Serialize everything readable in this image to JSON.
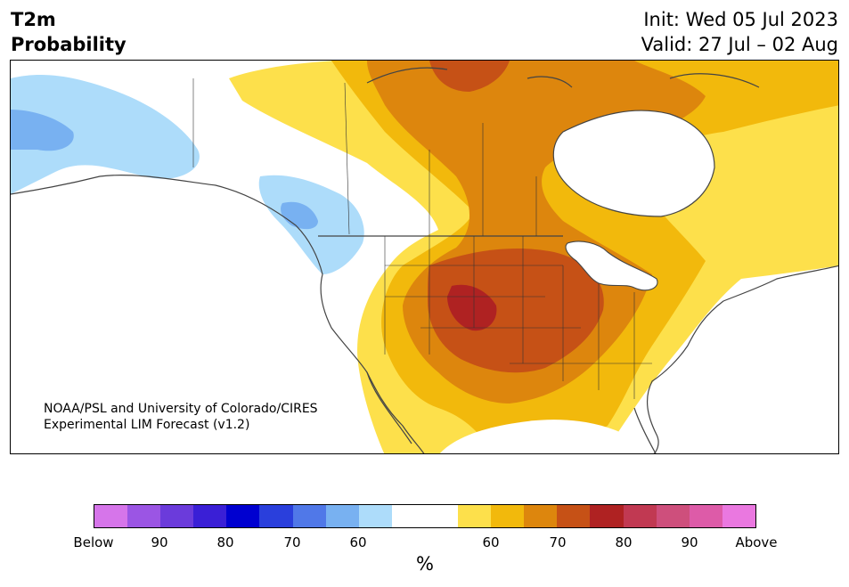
{
  "title": {
    "left_line1": "T2m",
    "left_line2": "Probability",
    "right_line1": "Init: Wed 05 Jul 2023",
    "right_line2": "Valid: 27 Jul – 02 Aug"
  },
  "credit": {
    "line1": "NOAA/PSL and University of Colorado/CIRES",
    "line2": "Experimental LIM Forecast (v1.2)"
  },
  "colorbar": {
    "colors": [
      "#d675ea",
      "#9b55e4",
      "#6b3bdb",
      "#3a1fd6",
      "#0000d0",
      "#2a3fdc",
      "#5078e8",
      "#78b1f1",
      "#addcfa",
      "#ffffff",
      "#ffffff",
      "#fde04b",
      "#f2b90c",
      "#dd860d",
      "#c65116",
      "#af2222",
      "#c13952",
      "#ce4f7c",
      "#dd5ba8",
      "#ea78e0"
    ],
    "tick_labels": [
      "Below",
      "90",
      "80",
      "70",
      "60",
      "60",
      "70",
      "80",
      "90",
      "Above"
    ],
    "unit": "%"
  },
  "legend_colors": {
    "below_light": "#addcfa",
    "below_mid": "#78b1f1",
    "above_60": "#fde04b",
    "above_65": "#f2b90c",
    "above_70": "#dd860d",
    "above_75": "#c65116",
    "above_80": "#af2222"
  }
}
